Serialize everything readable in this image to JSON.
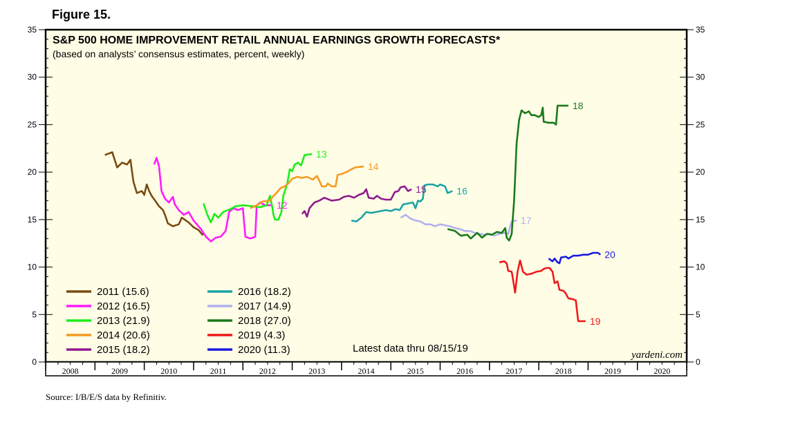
{
  "figure_label": "Figure 15.",
  "source": "Source: I/B/E/S data by Refinitiv.",
  "chart_data": {
    "type": "line",
    "title": "S&P 500 HOME IMPROVEMENT RETAIL ANNUAL EARNINGS GROWTH FORECASTS*",
    "subtitle": "(based on analysts’ consensus estimates, percent, weekly)",
    "annotation": "Latest data thru 08/15/19",
    "watermark": "yardeni.com",
    "ylim": [
      0,
      35
    ],
    "y_ticks": [
      0,
      5,
      10,
      15,
      20,
      25,
      30,
      35
    ],
    "y_tick_labels": [
      "0",
      "5",
      "10",
      "15",
      "20",
      "25",
      "30",
      "35"
    ],
    "xlim": [
      2008,
      2021
    ],
    "x_labels": [
      "2008",
      "2009",
      "2010",
      "2011",
      "2012",
      "2013",
      "2014",
      "2015",
      "2016",
      "2017",
      "2018",
      "2019",
      "2020"
    ],
    "series": [
      {
        "name": "2011 (15.6)",
        "end_label": "",
        "color": "#7a4a0e",
        "points": [
          [
            2009.2,
            21.8
          ],
          [
            2009.35,
            22.1
          ],
          [
            2009.45,
            20.5
          ],
          [
            2009.55,
            21
          ],
          [
            2009.65,
            20.8
          ],
          [
            2009.72,
            21.3
          ],
          [
            2009.78,
            19
          ],
          [
            2009.85,
            17.8
          ],
          [
            2009.95,
            18
          ],
          [
            2010.0,
            17.6
          ],
          [
            2010.05,
            18.7
          ],
          [
            2010.1,
            18
          ],
          [
            2010.15,
            17.5
          ],
          [
            2010.22,
            17
          ],
          [
            2010.3,
            16.4
          ],
          [
            2010.38,
            16
          ],
          [
            2010.42,
            15.5
          ],
          [
            2010.48,
            14.6
          ],
          [
            2010.58,
            14.3
          ],
          [
            2010.7,
            14.5
          ],
          [
            2010.76,
            15.2
          ],
          [
            2010.82,
            15
          ],
          [
            2010.9,
            14.7
          ],
          [
            2011.0,
            14.2
          ],
          [
            2011.1,
            13.9
          ],
          [
            2011.18,
            13.4
          ],
          [
            2011.2,
            13.6
          ]
        ]
      },
      {
        "name": "2012 (16.5)",
        "end_label": "12",
        "color": "#ff1aff",
        "points": [
          [
            2010.2,
            20.8
          ],
          [
            2010.25,
            21.5
          ],
          [
            2010.3,
            20.6
          ],
          [
            2010.35,
            18
          ],
          [
            2010.42,
            17.2
          ],
          [
            2010.5,
            16.8
          ],
          [
            2010.58,
            17.4
          ],
          [
            2010.62,
            16.6
          ],
          [
            2010.7,
            16
          ],
          [
            2010.8,
            15.5
          ],
          [
            2010.9,
            15.8
          ],
          [
            2011.0,
            14.9
          ],
          [
            2011.15,
            14
          ],
          [
            2011.25,
            13.2
          ],
          [
            2011.35,
            12.7
          ],
          [
            2011.45,
            13.1
          ],
          [
            2011.55,
            13.2
          ],
          [
            2011.65,
            13.8
          ],
          [
            2011.72,
            15.8
          ],
          [
            2011.8,
            16.2
          ],
          [
            2011.9,
            16
          ],
          [
            2012.0,
            16.2
          ],
          [
            2012.05,
            13.2
          ],
          [
            2012.15,
            13
          ],
          [
            2012.25,
            13.2
          ],
          [
            2012.28,
            16.5
          ],
          [
            2012.35,
            16.8
          ],
          [
            2012.45,
            16.5
          ],
          [
            2012.6,
            16.5
          ]
        ]
      },
      {
        "name": "2013 (21.9)",
        "end_label": "13",
        "color": "#1aee1a",
        "points": [
          [
            2011.2,
            16.7
          ],
          [
            2011.28,
            15.5
          ],
          [
            2011.35,
            14.7
          ],
          [
            2011.42,
            15.6
          ],
          [
            2011.5,
            15.2
          ],
          [
            2011.6,
            15.8
          ],
          [
            2011.7,
            16
          ],
          [
            2011.78,
            16.2
          ],
          [
            2011.85,
            16.4
          ],
          [
            2012.0,
            16.5
          ],
          [
            2012.2,
            16.4
          ],
          [
            2012.35,
            16.3
          ],
          [
            2012.48,
            16.5
          ],
          [
            2012.55,
            17.5
          ],
          [
            2012.6,
            16.2
          ],
          [
            2012.62,
            15.5
          ],
          [
            2012.65,
            15
          ],
          [
            2012.72,
            15
          ],
          [
            2012.78,
            15.8
          ],
          [
            2012.82,
            17.5
          ],
          [
            2012.9,
            18.8
          ],
          [
            2012.95,
            20.3
          ],
          [
            2013.0,
            20.1
          ],
          [
            2013.05,
            20.8
          ],
          [
            2013.12,
            21
          ],
          [
            2013.18,
            20.7
          ],
          [
            2013.25,
            21.8
          ],
          [
            2013.4,
            21.9
          ]
        ]
      },
      {
        "name": "2014 (20.6)",
        "end_label": "14",
        "color": "#f59a23",
        "points": [
          [
            2012.15,
            16.2
          ],
          [
            2012.28,
            16.5
          ],
          [
            2012.4,
            16.9
          ],
          [
            2012.55,
            17
          ],
          [
            2012.62,
            17.5
          ],
          [
            2012.68,
            17.8
          ],
          [
            2012.76,
            18.3
          ],
          [
            2012.85,
            18.5
          ],
          [
            2012.92,
            18.8
          ],
          [
            2013.0,
            19.3
          ],
          [
            2013.1,
            19.5
          ],
          [
            2013.2,
            19.4
          ],
          [
            2013.3,
            19.5
          ],
          [
            2013.42,
            19.2
          ],
          [
            2013.5,
            19.6
          ],
          [
            2013.55,
            19.1
          ],
          [
            2013.6,
            18.5
          ],
          [
            2013.68,
            18.5
          ],
          [
            2013.72,
            18.8
          ],
          [
            2013.8,
            18.5
          ],
          [
            2013.88,
            18.5
          ],
          [
            2013.92,
            19.7
          ],
          [
            2014.0,
            19.8
          ],
          [
            2014.1,
            20
          ],
          [
            2014.2,
            20.3
          ],
          [
            2014.28,
            20.5
          ],
          [
            2014.45,
            20.6
          ]
        ]
      },
      {
        "name": "2015 (18.2)",
        "end_label": "15",
        "color": "#8e1a8e",
        "points": [
          [
            2013.2,
            15.6
          ],
          [
            2013.25,
            15.9
          ],
          [
            2013.3,
            15.3
          ],
          [
            2013.35,
            16.2
          ],
          [
            2013.45,
            16.8
          ],
          [
            2013.55,
            17
          ],
          [
            2013.65,
            17.3
          ],
          [
            2013.8,
            17
          ],
          [
            2013.95,
            17.1
          ],
          [
            2014.05,
            17.4
          ],
          [
            2014.15,
            17.5
          ],
          [
            2014.25,
            17.3
          ],
          [
            2014.35,
            17.6
          ],
          [
            2014.45,
            17.8
          ],
          [
            2014.5,
            18.2
          ],
          [
            2014.55,
            17.3
          ],
          [
            2014.65,
            17.2
          ],
          [
            2014.72,
            17.5
          ],
          [
            2014.8,
            17.2
          ],
          [
            2014.9,
            17.1
          ],
          [
            2015.0,
            17.1
          ],
          [
            2015.08,
            17.9
          ],
          [
            2015.15,
            18
          ],
          [
            2015.2,
            18.4
          ],
          [
            2015.28,
            18.5
          ],
          [
            2015.35,
            18
          ],
          [
            2015.42,
            18.2
          ]
        ]
      },
      {
        "name": "2016 (18.2)",
        "end_label": "16",
        "color": "#1aa3a3",
        "points": [
          [
            2014.2,
            14.9
          ],
          [
            2014.3,
            14.8
          ],
          [
            2014.4,
            15.2
          ],
          [
            2014.45,
            15.5
          ],
          [
            2014.5,
            15.8
          ],
          [
            2014.6,
            15.7
          ],
          [
            2014.7,
            15.8
          ],
          [
            2014.8,
            15.9
          ],
          [
            2014.9,
            16
          ],
          [
            2015.0,
            15.9
          ],
          [
            2015.1,
            16.1
          ],
          [
            2015.18,
            16
          ],
          [
            2015.25,
            16.6
          ],
          [
            2015.35,
            16.7
          ],
          [
            2015.45,
            16.8
          ],
          [
            2015.5,
            16.2
          ],
          [
            2015.55,
            17
          ],
          [
            2015.6,
            16.9
          ],
          [
            2015.65,
            17.2
          ],
          [
            2015.68,
            18.6
          ],
          [
            2015.75,
            18.7
          ],
          [
            2015.85,
            18.7
          ],
          [
            2015.95,
            18.5
          ],
          [
            2016.0,
            18.7
          ],
          [
            2016.1,
            18.5
          ],
          [
            2016.15,
            17.8
          ],
          [
            2016.25,
            18
          ]
        ]
      },
      {
        "name": "2017 (14.9)",
        "end_label": "17",
        "color": "#b0b0f0",
        "points": [
          [
            2015.2,
            15.2
          ],
          [
            2015.3,
            15.5
          ],
          [
            2015.4,
            15.1
          ],
          [
            2015.5,
            14.9
          ],
          [
            2015.6,
            14.8
          ],
          [
            2015.7,
            14.5
          ],
          [
            2015.8,
            14.5
          ],
          [
            2015.9,
            14.3
          ],
          [
            2016.0,
            14.5
          ],
          [
            2016.1,
            14.4
          ],
          [
            2016.2,
            14.3
          ],
          [
            2016.3,
            14.1
          ],
          [
            2016.4,
            14
          ],
          [
            2016.5,
            13.8
          ],
          [
            2016.6,
            13.8
          ],
          [
            2016.7,
            13.6
          ],
          [
            2016.8,
            13.5
          ],
          [
            2016.9,
            13.4
          ],
          [
            2017.0,
            13.5
          ],
          [
            2017.1,
            13.3
          ],
          [
            2017.2,
            13.5
          ],
          [
            2017.3,
            13.6
          ],
          [
            2017.38,
            13.5
          ],
          [
            2017.45,
            14.8
          ],
          [
            2017.55,
            14.9
          ]
        ]
      },
      {
        "name": "2018 (27.0)",
        "end_label": "18",
        "color": "#1a7a1a",
        "points": [
          [
            2016.15,
            14
          ],
          [
            2016.3,
            13.8
          ],
          [
            2016.42,
            13.3
          ],
          [
            2016.55,
            13.4
          ],
          [
            2016.62,
            13
          ],
          [
            2016.75,
            13.6
          ],
          [
            2016.85,
            13.1
          ],
          [
            2016.95,
            13.5
          ],
          [
            2017.05,
            13.4
          ],
          [
            2017.15,
            13.7
          ],
          [
            2017.25,
            13.6
          ],
          [
            2017.32,
            14.1
          ],
          [
            2017.35,
            13.1
          ],
          [
            2017.4,
            12.8
          ],
          [
            2017.45,
            13.5
          ],
          [
            2017.5,
            17
          ],
          [
            2017.55,
            23
          ],
          [
            2017.6,
            25.5
          ],
          [
            2017.65,
            26.5
          ],
          [
            2017.72,
            26.2
          ],
          [
            2017.8,
            26.4
          ],
          [
            2017.85,
            26
          ],
          [
            2017.92,
            26
          ],
          [
            2018.0,
            25.8
          ],
          [
            2018.05,
            26
          ],
          [
            2018.08,
            26.8
          ],
          [
            2018.1,
            25.3
          ],
          [
            2018.2,
            25.2
          ],
          [
            2018.3,
            25.2
          ],
          [
            2018.35,
            25
          ],
          [
            2018.38,
            27
          ],
          [
            2018.5,
            27
          ],
          [
            2018.6,
            27
          ]
        ]
      },
      {
        "name": "2019 (4.3)",
        "end_label": "19",
        "color": "#ee1a1a",
        "points": [
          [
            2017.2,
            10.5
          ],
          [
            2017.3,
            10.6
          ],
          [
            2017.35,
            10.4
          ],
          [
            2017.38,
            9.6
          ],
          [
            2017.45,
            9.5
          ],
          [
            2017.5,
            8
          ],
          [
            2017.52,
            7.3
          ],
          [
            2017.57,
            9.5
          ],
          [
            2017.62,
            10.7
          ],
          [
            2017.68,
            9.5
          ],
          [
            2017.75,
            9.2
          ],
          [
            2017.85,
            9.3
          ],
          [
            2017.95,
            9.5
          ],
          [
            2018.05,
            9.6
          ],
          [
            2018.1,
            9.8
          ],
          [
            2018.15,
            9.9
          ],
          [
            2018.22,
            9.9
          ],
          [
            2018.28,
            9.5
          ],
          [
            2018.32,
            8.3
          ],
          [
            2018.38,
            8.5
          ],
          [
            2018.42,
            7.6
          ],
          [
            2018.5,
            7.5
          ],
          [
            2018.55,
            7.2
          ],
          [
            2018.6,
            6.7
          ],
          [
            2018.7,
            6.6
          ],
          [
            2018.75,
            6.5
          ],
          [
            2018.8,
            4.3
          ],
          [
            2018.95,
            4.3
          ]
        ]
      },
      {
        "name": "2020 (11.3)",
        "end_label": "20",
        "color": "#1a1ae0",
        "points": [
          [
            2018.2,
            10.9
          ],
          [
            2018.28,
            10.6
          ],
          [
            2018.32,
            10.9
          ],
          [
            2018.38,
            10.5
          ],
          [
            2018.42,
            10.4
          ],
          [
            2018.45,
            11
          ],
          [
            2018.55,
            11.1
          ],
          [
            2018.6,
            10.9
          ],
          [
            2018.7,
            11.2
          ],
          [
            2018.8,
            11.2
          ],
          [
            2018.9,
            11.3
          ],
          [
            2019.0,
            11.3
          ],
          [
            2019.1,
            11.5
          ],
          [
            2019.2,
            11.5
          ],
          [
            2019.25,
            11.3
          ]
        ]
      }
    ]
  }
}
